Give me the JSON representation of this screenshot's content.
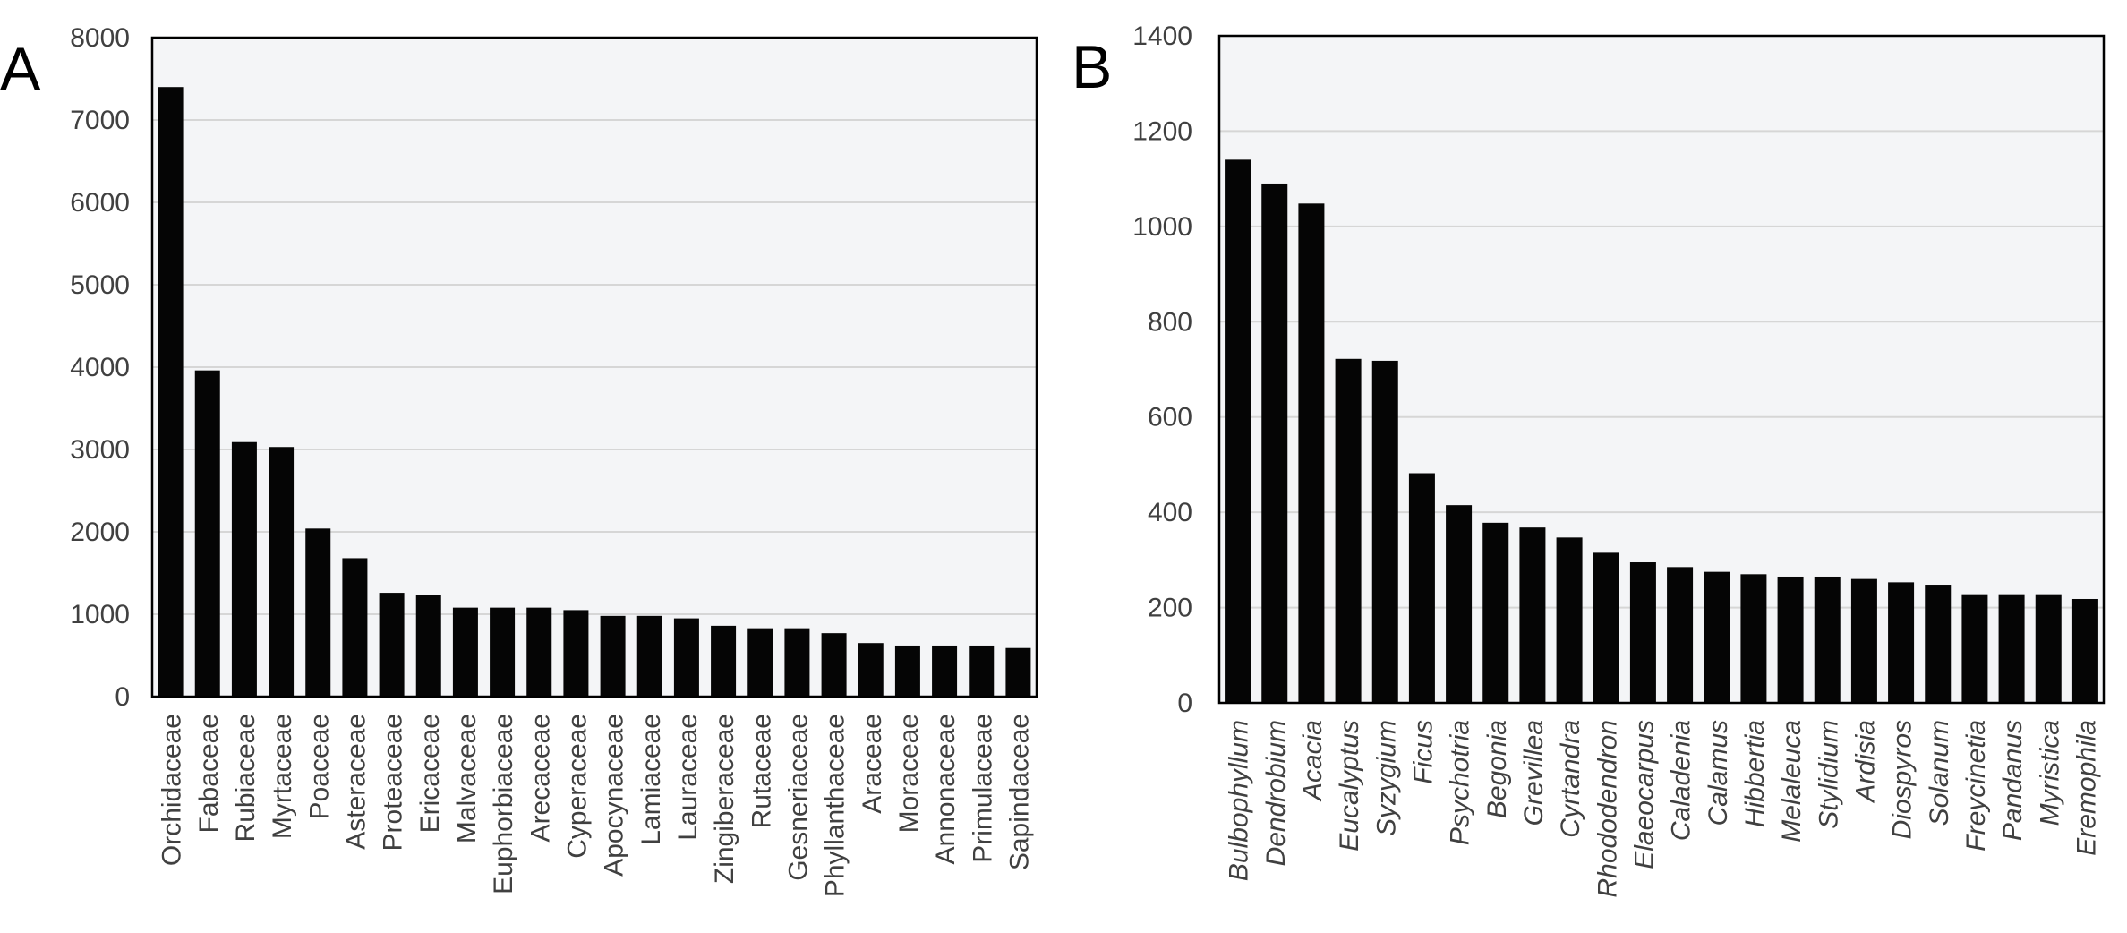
{
  "chart_data": [
    {
      "type": "bar",
      "panel_label": "A",
      "categories": [
        "Orchidaceae",
        "Fabaceae",
        "Rubiaceae",
        "Myrtaceae",
        "Poaceae",
        "Asteraceae",
        "Proteaceae",
        "Ericaceae",
        "Malvaceae",
        "Euphorbiaceae",
        "Arecaceae",
        "Cyperaceae",
        "Apocynaceae",
        "Lamiaceae",
        "Lauraceae",
        "Zingiberaceae",
        "Rutaceae",
        "Gesneriaceae",
        "Phyllanthaceae",
        "Araceae",
        "Moraceae",
        "Annonaceae",
        "Primulaceae",
        "Sapindaceae"
      ],
      "values": [
        7400,
        3960,
        3090,
        3030,
        2040,
        1680,
        1260,
        1230,
        1080,
        1080,
        1080,
        1050,
        980,
        980,
        950,
        860,
        830,
        830,
        770,
        650,
        620,
        620,
        620,
        590
      ],
      "title": "",
      "xlabel": "",
      "ylabel": "",
      "ylim": [
        0,
        8000
      ],
      "yticks": [
        "0",
        "1000",
        "2000",
        "3000",
        "4000",
        "5000",
        "6000",
        "7000",
        "8000"
      ],
      "grid": true,
      "italic_labels": false,
      "colors": {
        "bar": "#050505",
        "plot_bg": "#f4f5f7",
        "grid": "#d6d6d6",
        "axis": "#000000"
      }
    },
    {
      "type": "bar",
      "panel_label": "B",
      "categories": [
        "Bulbophyllum",
        "Dendrobium",
        "Acacia",
        "Eucalyptus",
        "Syzygium",
        "Ficus",
        "Psychotria",
        "Begonia",
        "Grevillea",
        "Cyrtandra",
        "Rhododendron",
        "Elaeocarpus",
        "Caladenia",
        "Calamus",
        "Hibbertia",
        "Melaleuca",
        "Stylidium",
        "Ardisia",
        "Diospyros",
        "Solanum",
        "Freycinetia",
        "Pandanus",
        "Myristica",
        "Eremophila"
      ],
      "values": [
        1140,
        1090,
        1048,
        722,
        718,
        482,
        415,
        378,
        368,
        347,
        315,
        295,
        285,
        275,
        270,
        265,
        265,
        260,
        253,
        248,
        228,
        228,
        228,
        218
      ],
      "title": "",
      "xlabel": "",
      "ylabel": "",
      "ylim": [
        0,
        1400
      ],
      "yticks": [
        "0",
        "200",
        "400",
        "600",
        "800",
        "1000",
        "1200",
        "1400"
      ],
      "grid": true,
      "italic_labels": true,
      "colors": {
        "bar": "#050505",
        "plot_bg": "#f4f5f7",
        "grid": "#d6d6d6",
        "axis": "#000000"
      }
    }
  ]
}
